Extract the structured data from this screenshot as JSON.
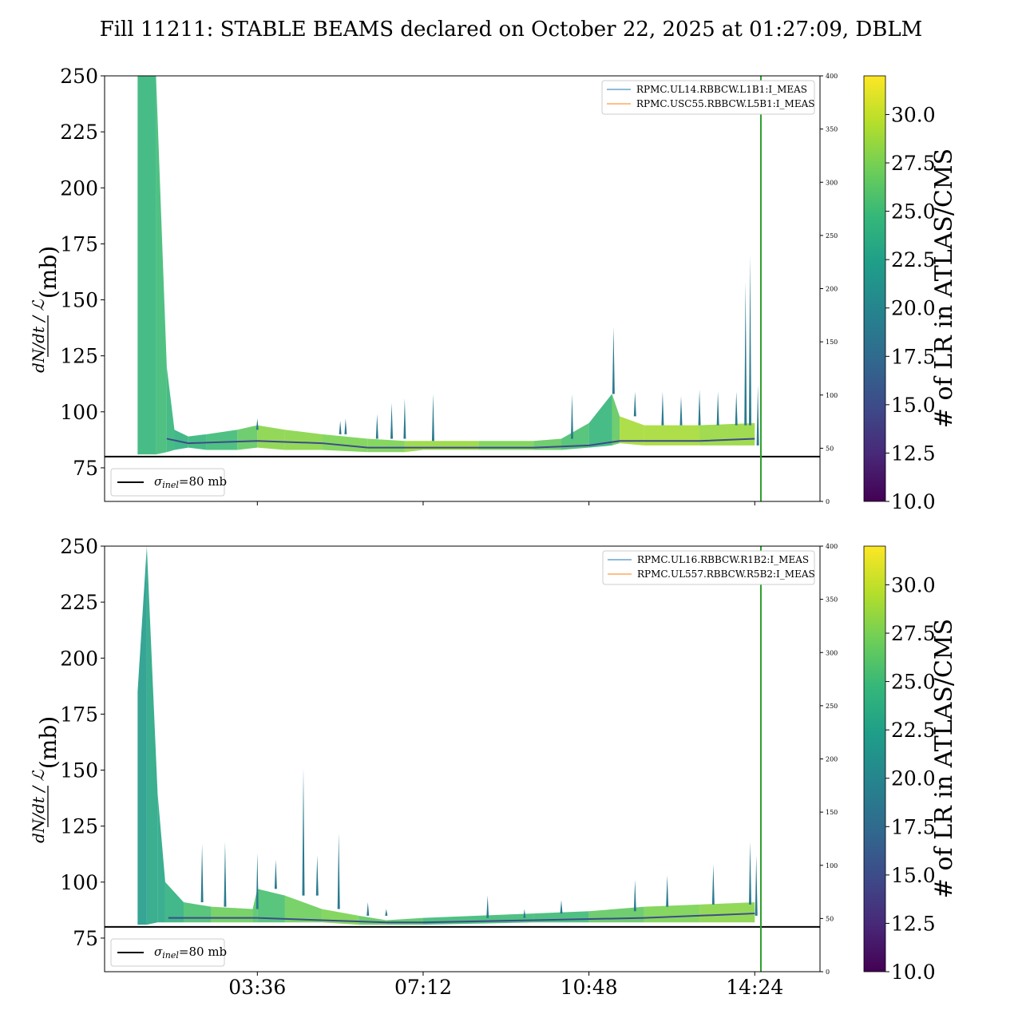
{
  "figure_title": "Fill 11211: STABLE BEAMS declared on October 22, 2025 at 01:27:09, DBLM",
  "reference_line": {
    "y": 80,
    "legend_label": "σinel=80 mb",
    "legend_symbol": "σ",
    "legend_sub": "inel",
    "legend_suffix": "=80 mb"
  },
  "colors": {
    "reference_line": "#000000",
    "end_marker": "#2ca02c",
    "legend_current_1": "#1f77b4",
    "legend_current_2": "#ff7f0e",
    "colormap": [
      "#440154",
      "#482878",
      "#3e4a89",
      "#31688e",
      "#26828e",
      "#1f9e89",
      "#35b779",
      "#6ece58",
      "#b5de2b",
      "#fde725"
    ]
  },
  "chart_data": [
    {
      "type": "area",
      "ylabel_frac": "dN/dt / ℒ",
      "ylabel_unit": "(mb)",
      "ylim": [
        60,
        250
      ],
      "yticks": [
        75,
        100,
        125,
        150,
        175,
        200,
        225,
        250
      ],
      "y2lim": [
        0,
        400
      ],
      "y2ticks": [
        0,
        50,
        100,
        150,
        200,
        250,
        300,
        350,
        400
      ],
      "xlim": [
        "00:17",
        "15:49"
      ],
      "xticks": [
        "03:36",
        "07:12",
        "10:48",
        "14:24"
      ],
      "xtick_labels_shown": false,
      "end_marker_time": "14:32",
      "legend_entries": [
        "RPMC.UL14.RBBCW.L1B1:I_MEAS",
        "RPMC.USC55.RBBCW.L5B1:I_MEAS"
      ],
      "legend_placement": "upper right",
      "colorbar": {
        "label": "# of LR in ATLAS/CMS",
        "range": [
          10.0,
          32.0
        ],
        "ticks": [
          10.0,
          12.5,
          15.0,
          17.5,
          20.0,
          22.5,
          25.0,
          27.5,
          30.0
        ]
      },
      "band": [
        {
          "t": "01:00",
          "lo": 81,
          "hi": 250,
          "c": 24
        },
        {
          "t": "01:24",
          "lo": 81,
          "hi": 250,
          "c": 25
        },
        {
          "t": "01:38",
          "lo": 82,
          "hi": 120,
          "c": 25
        },
        {
          "t": "01:48",
          "lo": 83,
          "hi": 92,
          "c": 24
        },
        {
          "t": "02:06",
          "lo": 84,
          "hi": 89,
          "c": 24
        },
        {
          "t": "02:30",
          "lo": 83,
          "hi": 90,
          "c": 25
        },
        {
          "t": "03:10",
          "lo": 83,
          "hi": 92,
          "c": 25
        },
        {
          "t": "03:36",
          "lo": 84,
          "hi": 94,
          "c": 28
        },
        {
          "t": "04:12",
          "lo": 83,
          "hi": 92,
          "c": 28
        },
        {
          "t": "05:00",
          "lo": 83,
          "hi": 90,
          "c": 28
        },
        {
          "t": "06:00",
          "lo": 82,
          "hi": 88,
          "c": 27
        },
        {
          "t": "06:48",
          "lo": 82,
          "hi": 87,
          "c": 28
        },
        {
          "t": "07:12",
          "lo": 83,
          "hi": 87,
          "c": 29
        },
        {
          "t": "08:24",
          "lo": 83,
          "hi": 87,
          "c": 28
        },
        {
          "t": "09:36",
          "lo": 83,
          "hi": 87,
          "c": 27
        },
        {
          "t": "10:12",
          "lo": 83,
          "hi": 88,
          "c": 26
        },
        {
          "t": "10:48",
          "lo": 84,
          "hi": 95,
          "c": 25
        },
        {
          "t": "11:18",
          "lo": 85,
          "hi": 108,
          "c": 24
        },
        {
          "t": "11:28",
          "lo": 86,
          "hi": 98,
          "c": 29
        },
        {
          "t": "12:00",
          "lo": 85,
          "hi": 94,
          "c": 29
        },
        {
          "t": "13:12",
          "lo": 85,
          "hi": 94,
          "c": 29
        },
        {
          "t": "14:24",
          "lo": 85,
          "hi": 95,
          "c": 28
        }
      ],
      "median": [
        {
          "t": "01:38",
          "v": 88
        },
        {
          "t": "02:06",
          "v": 86
        },
        {
          "t": "03:36",
          "v": 87
        },
        {
          "t": "05:00",
          "v": 86
        },
        {
          "t": "06:00",
          "v": 84
        },
        {
          "t": "07:12",
          "v": 84
        },
        {
          "t": "09:36",
          "v": 84
        },
        {
          "t": "10:48",
          "v": 85
        },
        {
          "t": "11:28",
          "v": 87
        },
        {
          "t": "13:12",
          "v": 87
        },
        {
          "t": "14:24",
          "v": 88
        }
      ],
      "spikes": [
        {
          "t": "03:36",
          "v": 97
        },
        {
          "t": "05:24",
          "v": 96
        },
        {
          "t": "05:31",
          "v": 97
        },
        {
          "t": "06:12",
          "v": 99
        },
        {
          "t": "06:31",
          "v": 104
        },
        {
          "t": "06:48",
          "v": 106
        },
        {
          "t": "07:25",
          "v": 108
        },
        {
          "t": "09:31",
          "v": 87
        },
        {
          "t": "10:26",
          "v": 108
        },
        {
          "t": "11:20",
          "v": 138
        },
        {
          "t": "11:48",
          "v": 109
        },
        {
          "t": "12:24",
          "v": 109
        },
        {
          "t": "12:48",
          "v": 107
        },
        {
          "t": "13:12",
          "v": 110
        },
        {
          "t": "13:36",
          "v": 109
        },
        {
          "t": "14:00",
          "v": 109
        },
        {
          "t": "14:12",
          "v": 158
        },
        {
          "t": "14:18",
          "v": 170
        },
        {
          "t": "14:28",
          "v": 112
        }
      ]
    },
    {
      "type": "area",
      "ylabel_frac": "dN/dt / ℒ",
      "ylabel_unit": "(mb)",
      "ylim": [
        60,
        250
      ],
      "yticks": [
        75,
        100,
        125,
        150,
        175,
        200,
        225,
        250
      ],
      "y2lim": [
        0,
        400
      ],
      "y2ticks": [
        0,
        50,
        100,
        150,
        200,
        250,
        300,
        350,
        400
      ],
      "xlim": [
        "00:17",
        "15:49"
      ],
      "xticks": [
        "03:36",
        "07:12",
        "10:48",
        "14:24"
      ],
      "xtick_labels_shown": true,
      "end_marker_time": "14:32",
      "legend_entries": [
        "RPMC.UL16.RBBCW.R1B2:I_MEAS",
        "RPMC.UL557.RBBCW.R5B2:I_MEAS"
      ],
      "legend_placement": "upper right",
      "colorbar": {
        "label": "# of LR in ATLAS/CMS",
        "range": [
          10.0,
          32.0
        ],
        "ticks": [
          10.0,
          12.5,
          15.0,
          17.5,
          20.0,
          22.5,
          25.0,
          27.5,
          30.0
        ]
      },
      "band": [
        {
          "t": "01:00",
          "lo": 81,
          "hi": 185,
          "c": 20
        },
        {
          "t": "01:12",
          "lo": 81,
          "hi": 250,
          "c": 24
        },
        {
          "t": "01:26",
          "lo": 82,
          "hi": 140,
          "c": 22
        },
        {
          "t": "01:36",
          "lo": 82,
          "hi": 100,
          "c": 24
        },
        {
          "t": "02:00",
          "lo": 82,
          "hi": 91,
          "c": 24
        },
        {
          "t": "02:36",
          "lo": 82,
          "hi": 89,
          "c": 27
        },
        {
          "t": "03:30",
          "lo": 82,
          "hi": 88,
          "c": 27
        },
        {
          "t": "03:36",
          "lo": 82,
          "hi": 97,
          "c": 25
        },
        {
          "t": "04:12",
          "lo": 82,
          "hi": 94,
          "c": 26
        },
        {
          "t": "05:00",
          "lo": 82,
          "hi": 88,
          "c": 28
        },
        {
          "t": "05:48",
          "lo": 81,
          "hi": 85,
          "c": 27
        },
        {
          "t": "06:24",
          "lo": 81,
          "hi": 83,
          "c": 26
        },
        {
          "t": "07:12",
          "lo": 81,
          "hi": 84,
          "c": 26
        },
        {
          "t": "09:36",
          "lo": 82,
          "hi": 86,
          "c": 24
        },
        {
          "t": "10:48",
          "lo": 82,
          "hi": 87,
          "c": 26
        },
        {
          "t": "12:00",
          "lo": 82,
          "hi": 89,
          "c": 27
        },
        {
          "t": "13:12",
          "lo": 82,
          "hi": 90,
          "c": 28
        },
        {
          "t": "14:24",
          "lo": 82,
          "hi": 91,
          "c": 28
        }
      ],
      "median": [
        {
          "t": "01:40",
          "v": 84
        },
        {
          "t": "03:36",
          "v": 84
        },
        {
          "t": "05:00",
          "v": 83
        },
        {
          "t": "06:24",
          "v": 82
        },
        {
          "t": "07:12",
          "v": 82
        },
        {
          "t": "09:36",
          "v": 83
        },
        {
          "t": "12:00",
          "v": 84
        },
        {
          "t": "14:24",
          "v": 86
        }
      ],
      "spikes": [
        {
          "t": "02:24",
          "v": 117
        },
        {
          "t": "02:54",
          "v": 118
        },
        {
          "t": "03:36",
          "v": 113
        },
        {
          "t": "04:00",
          "v": 110
        },
        {
          "t": "04:36",
          "v": 151
        },
        {
          "t": "04:54",
          "v": 112
        },
        {
          "t": "05:22",
          "v": 122
        },
        {
          "t": "06:00",
          "v": 91
        },
        {
          "t": "06:24",
          "v": 88
        },
        {
          "t": "08:36",
          "v": 94
        },
        {
          "t": "09:24",
          "v": 88
        },
        {
          "t": "10:12",
          "v": 92
        },
        {
          "t": "11:48",
          "v": 101
        },
        {
          "t": "12:30",
          "v": 103
        },
        {
          "t": "13:30",
          "v": 108
        },
        {
          "t": "14:18",
          "v": 118
        },
        {
          "t": "14:26",
          "v": 112
        }
      ]
    }
  ]
}
